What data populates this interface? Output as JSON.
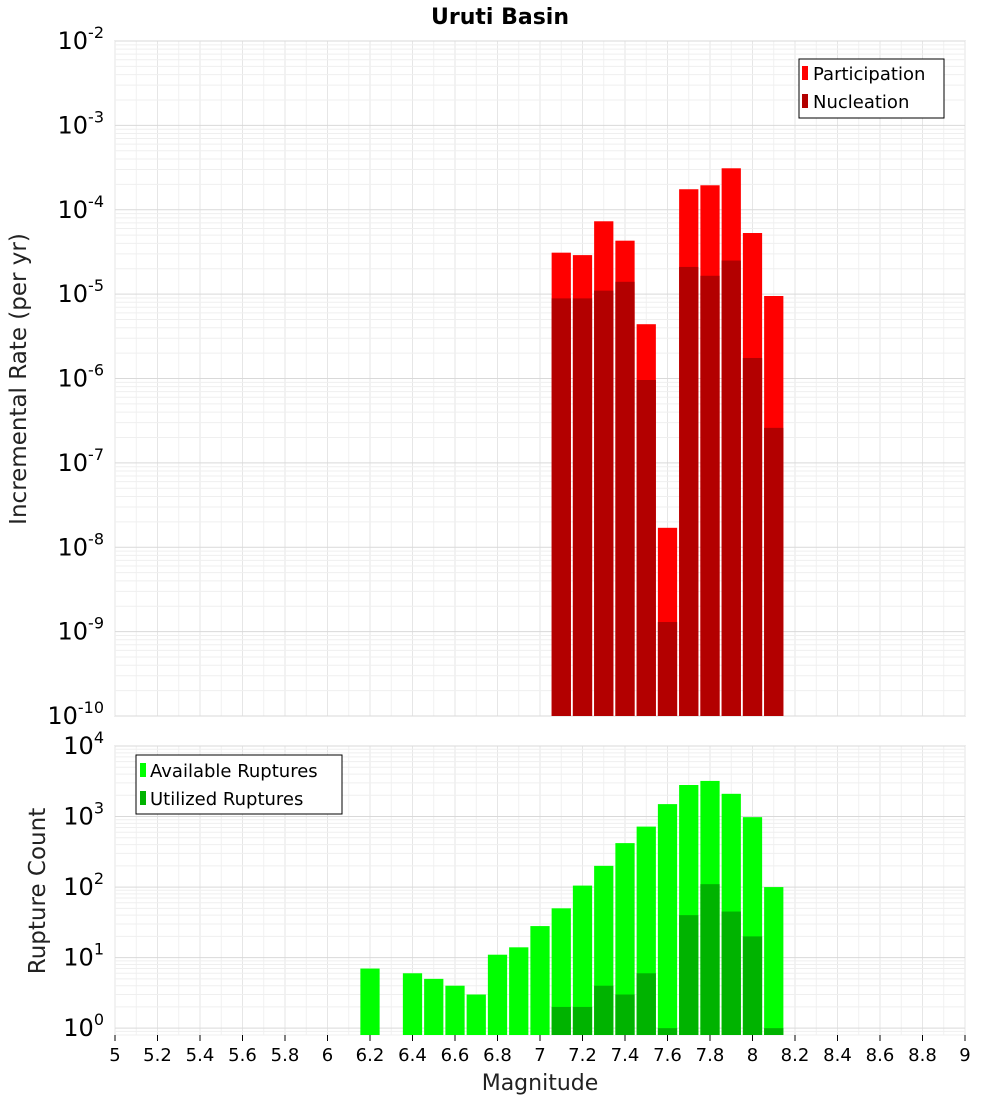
{
  "chart_data": [
    {
      "type": "bar",
      "title": "Uruti Basin",
      "xlabel": "Magnitude",
      "ylabel": "Incremental Rate (per yr)",
      "yscale": "log",
      "xlim": [
        5,
        9
      ],
      "ylim": [
        1e-10,
        0.01
      ],
      "bin_width": 0.1,
      "legend": "top-right",
      "grid": true,
      "x": [
        7.1,
        7.2,
        7.3,
        7.4,
        7.5,
        7.6,
        7.7,
        7.8,
        7.9,
        8.0,
        8.1
      ],
      "series": [
        {
          "name": "Participation",
          "color": "#ff0000",
          "values": [
            3.1e-05,
            2.9e-05,
            7.3e-05,
            4.3e-05,
            4.4e-06,
            1.7e-08,
            0.000175,
            0.000195,
            0.00031,
            5.3e-05,
            9.5e-06
          ]
        },
        {
          "name": "Nucleation",
          "color": "#b30000",
          "values": [
            8.9e-06,
            8.9e-06,
            1.1e-05,
            1.4e-05,
            9.6e-07,
            1.3e-09,
            2.1e-05,
            1.65e-05,
            2.5e-05,
            1.75e-06,
            2.6e-07
          ]
        }
      ]
    },
    {
      "type": "bar",
      "xlabel": "Magnitude",
      "ylabel": "Rupture Count",
      "yscale": "log",
      "xlim": [
        5,
        9
      ],
      "ylim": [
        0.8,
        10000
      ],
      "bin_width": 0.1,
      "legend": "top-left",
      "grid": true,
      "x": [
        6.2,
        6.4,
        6.5,
        6.6,
        6.7,
        6.8,
        6.9,
        7.0,
        7.1,
        7.2,
        7.3,
        7.4,
        7.5,
        7.6,
        7.7,
        7.8,
        7.9,
        8.0,
        8.1
      ],
      "series": [
        {
          "name": "Available Ruptures",
          "color": "#00ff00",
          "values": [
            7,
            6,
            5,
            4,
            3,
            11,
            14,
            28,
            50,
            105,
            200,
            420,
            720,
            1500,
            2800,
            3200,
            2100,
            980,
            100
          ]
        },
        {
          "name": "Utilized Ruptures",
          "color": "#00b300",
          "values": [
            0,
            0,
            0,
            0,
            0,
            0,
            0,
            0,
            2,
            2,
            4,
            3,
            6,
            1,
            40,
            110,
            45,
            20,
            1
          ]
        }
      ]
    }
  ],
  "x_ticks": [
    "5",
    "5.2",
    "5.4",
    "5.6",
    "5.8",
    "6",
    "6.2",
    "6.4",
    "6.6",
    "6.8",
    "7",
    "7.2",
    "7.4",
    "7.6",
    "7.8",
    "8",
    "8.2",
    "8.4",
    "8.6",
    "8.8",
    "9"
  ],
  "top_y_ticks": [
    {
      "base": "10",
      "exp": "-2",
      "value": 0.01
    },
    {
      "base": "10",
      "exp": "-3",
      "value": 0.001
    },
    {
      "base": "10",
      "exp": "-4",
      "value": 0.0001
    },
    {
      "base": "10",
      "exp": "-5",
      "value": 1e-05
    },
    {
      "base": "10",
      "exp": "-6",
      "value": 1e-06
    },
    {
      "base": "10",
      "exp": "-7",
      "value": 1e-07
    },
    {
      "base": "10",
      "exp": "-8",
      "value": 1e-08
    },
    {
      "base": "10",
      "exp": "-9",
      "value": 1e-09
    },
    {
      "base": "10",
      "exp": "-10",
      "value": 1e-10
    }
  ],
  "bottom_y_ticks": [
    {
      "base": "10",
      "exp": "4",
      "value": 10000
    },
    {
      "base": "10",
      "exp": "3",
      "value": 1000
    },
    {
      "base": "10",
      "exp": "2",
      "value": 100
    },
    {
      "base": "10",
      "exp": "1",
      "value": 10
    },
    {
      "base": "10",
      "exp": "0",
      "value": 1
    }
  ]
}
